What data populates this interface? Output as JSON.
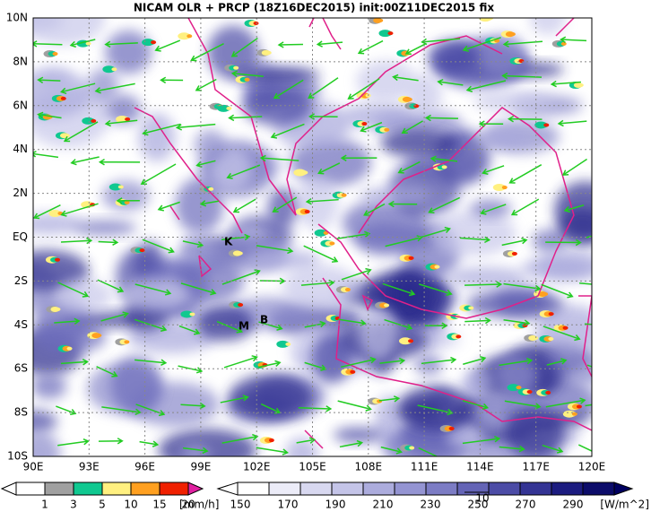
{
  "title": "NICAM OLR + PRCP (18Z16DEC2015) init:00Z11DEC2015 fix",
  "map": {
    "lat_labels": [
      "10N",
      "8N",
      "6N",
      "4N",
      "2N",
      "EQ",
      "2S",
      "4S",
      "6S",
      "8S",
      "10S"
    ],
    "lon_labels": [
      "90E",
      "93E",
      "96E",
      "99E",
      "102E",
      "105E",
      "108E",
      "111E",
      "114E",
      "117E",
      "120E"
    ],
    "markers": [
      "K",
      "M",
      "B"
    ]
  },
  "legend": {
    "precip": {
      "labels": [
        "1",
        "3",
        "5",
        "10",
        "15",
        "20"
      ],
      "units": "[mm/h]"
    },
    "olr": {
      "labels": [
        "150",
        "170",
        "190",
        "210",
        "230",
        "250",
        "270",
        "290"
      ],
      "units": "[W/m^2]"
    },
    "vector_label": "10"
  }
}
